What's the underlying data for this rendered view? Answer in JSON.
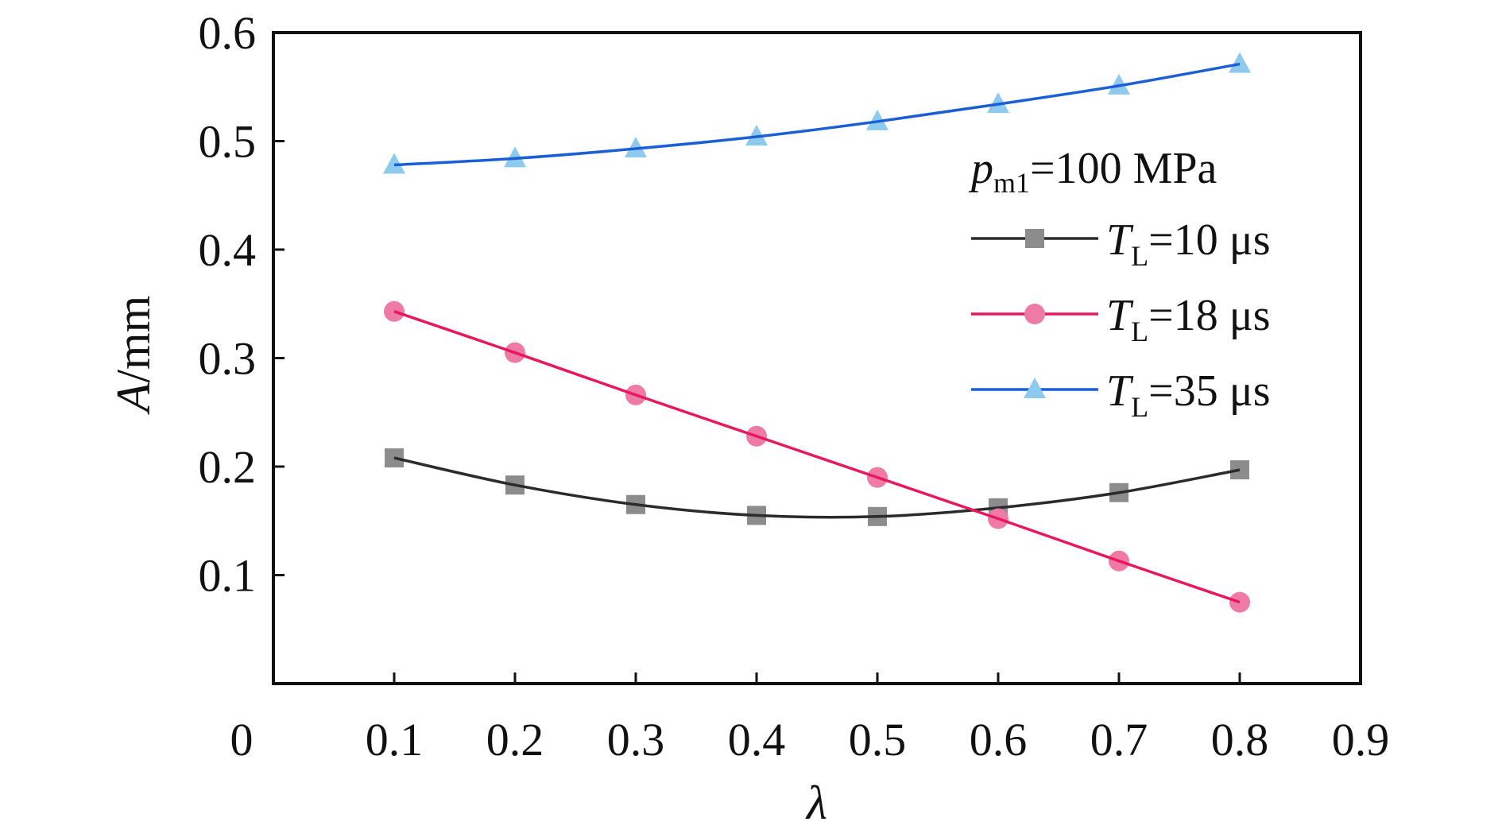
{
  "chart_data": {
    "type": "line",
    "xlabel": "λ",
    "ylabel_var": "A",
    "ylabel_unit": "/mm",
    "xlim": [
      0,
      0.9
    ],
    "ylim": [
      0,
      0.6
    ],
    "x_ticks": [
      "0",
      "0.1",
      "0.2",
      "0.3",
      "0.4",
      "0.5",
      "0.6",
      "0.7",
      "0.8",
      "0.9"
    ],
    "x_tick_values": [
      0,
      0.1,
      0.2,
      0.3,
      0.4,
      0.5,
      0.6,
      0.7,
      0.8,
      0.9
    ],
    "y_ticks": [
      "0.1",
      "0.2",
      "0.3",
      "0.4",
      "0.5",
      "0.6"
    ],
    "y_tick_values": [
      0.1,
      0.2,
      0.3,
      0.4,
      0.5,
      0.6
    ],
    "grid": false,
    "legend_position": "right",
    "legend_header": {
      "var": "p",
      "sub": "m1",
      "text": "=100 MPa"
    },
    "x": [
      0.1,
      0.2,
      0.3,
      0.4,
      0.5,
      0.6,
      0.7,
      0.8
    ],
    "series": [
      {
        "label_var": "T",
        "label_sub": "L",
        "label_text": "=10 μs",
        "color": "#2b2b2b",
        "marker_color": "#8c8c8c",
        "marker": "square",
        "values": [
          0.208,
          0.183,
          0.165,
          0.155,
          0.154,
          0.162,
          0.176,
          0.197
        ]
      },
      {
        "label_var": "T",
        "label_sub": "L",
        "label_text": "=18 μs",
        "color": "#e8195a",
        "marker_color": "#f07aa6",
        "marker": "circle",
        "values": [
          0.343,
          0.305,
          0.266,
          0.228,
          0.19,
          0.152,
          0.113,
          0.075
        ]
      },
      {
        "label_var": "T",
        "label_sub": "L",
        "label_text": "=35 μs",
        "color": "#1a5fd6",
        "marker_color": "#8ec9ee",
        "marker": "triangle",
        "values": [
          0.478,
          0.484,
          0.493,
          0.504,
          0.518,
          0.534,
          0.551,
          0.571
        ]
      }
    ]
  }
}
